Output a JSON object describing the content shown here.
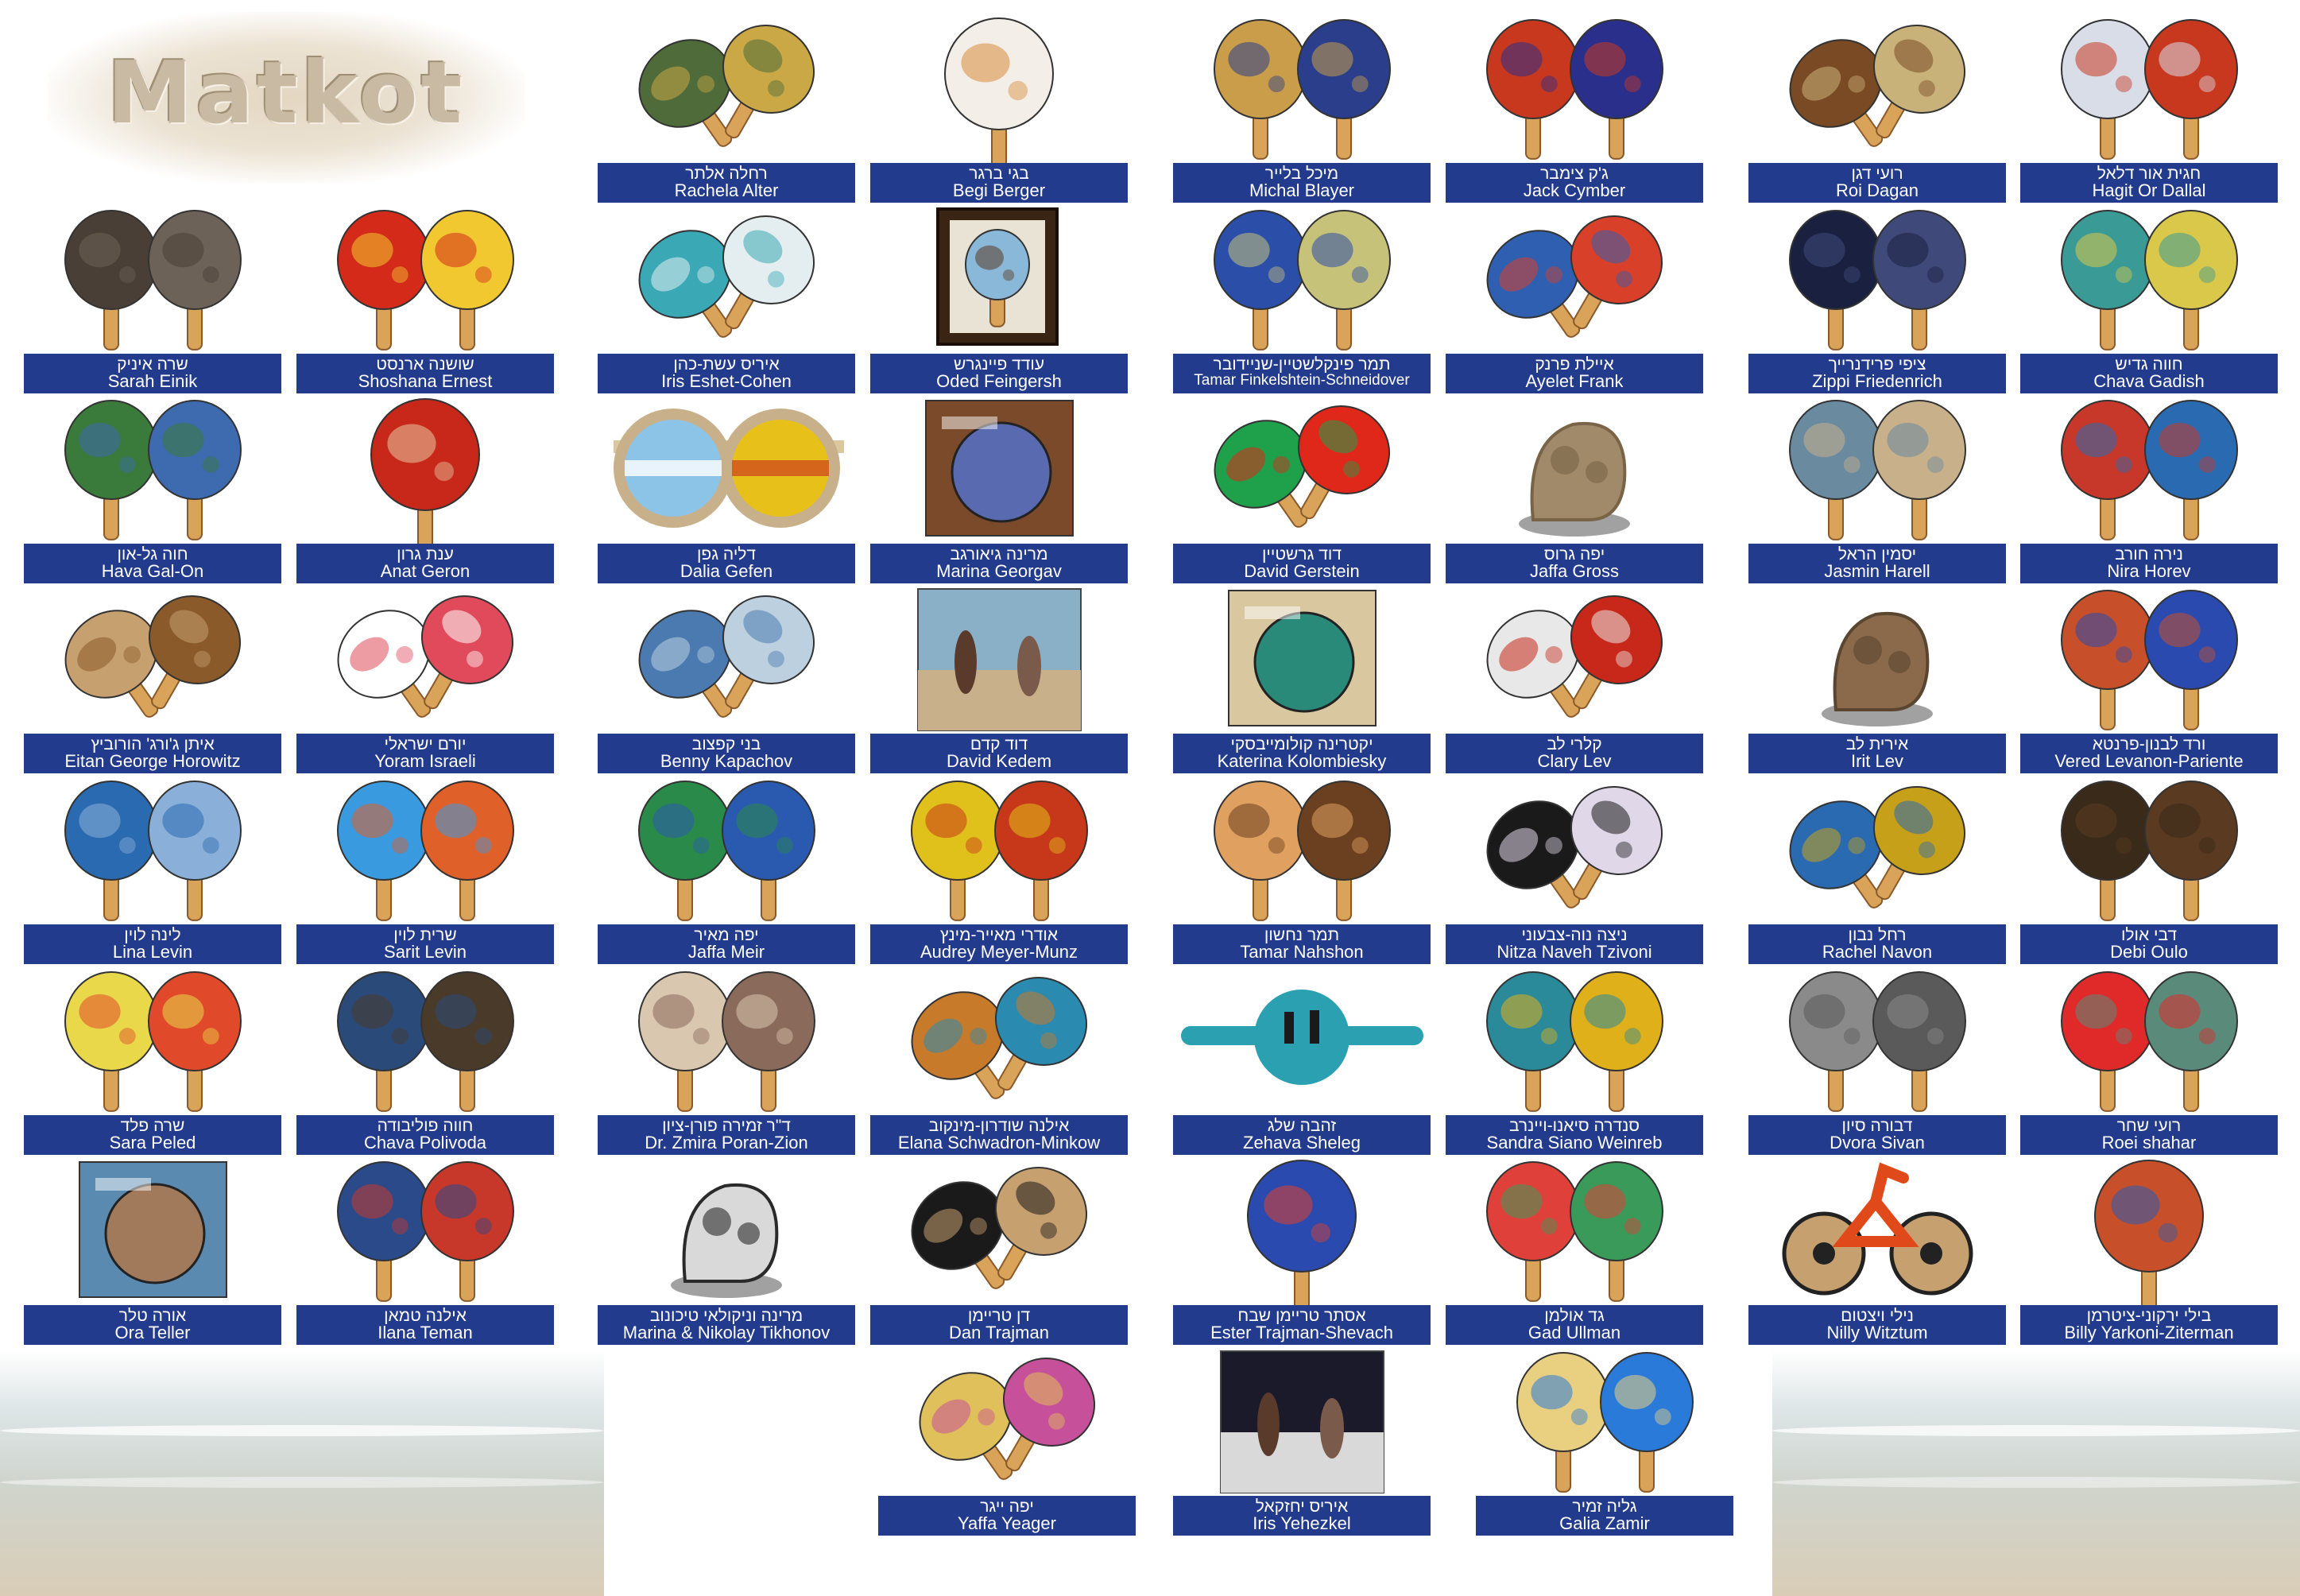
{
  "logo": {
    "text": "Matkot"
  },
  "artists": [
    {
      "he": "רחלה אלתר",
      "en": "Rachela Alter",
      "colors": [
        "#4f6b3a",
        "#c9a845"
      ],
      "kind": "pair-tilt"
    },
    {
      "he": "בגי ברגר",
      "en": "Begi Berger",
      "colors": [
        "#f3efe8",
        "#d98b3a"
      ],
      "kind": "single"
    },
    {
      "he": "מיכל בלייר",
      "en": "Michal Blayer",
      "colors": [
        "#c99d4a",
        "#2a3e8c"
      ],
      "kind": "pair"
    },
    {
      "he": "ג'ק צימבר",
      "en": "Jack Cymber",
      "colors": [
        "#c7381f",
        "#2b2f8c"
      ],
      "kind": "pair"
    },
    {
      "he": "רועי דגן",
      "en": "Roi Dagan",
      "colors": [
        "#7a4a25",
        "#c9b27a"
      ],
      "kind": "pair-tilt"
    },
    {
      "he": "חגית אור דלאל",
      "en": "Hagit Or Dallal",
      "colors": [
        "#d9dde8",
        "#c7381f"
      ],
      "kind": "pair"
    },
    {
      "he": "שרה איניק",
      "en": "Sarah Einik",
      "colors": [
        "#4a3f36",
        "#6c6258"
      ],
      "kind": "pair"
    },
    {
      "he": "שושנה ארנסט",
      "en": "Shoshana Ernest",
      "colors": [
        "#d42a1a",
        "#f2c830"
      ],
      "kind": "pair"
    },
    {
      "he": "איריס עשת-כהן",
      "en": "Iris  Eshet-Cohen",
      "colors": [
        "#3aa9b5",
        "#e4eef0"
      ],
      "kind": "pair-tilt"
    },
    {
      "he": "עודד פיינגרש",
      "en": "Oded Feingersh",
      "colors": [
        "#e9e3d6",
        "#5a3a24"
      ],
      "kind": "frame"
    },
    {
      "he": "תמר פינקלשטיין-שניידובר",
      "en": "Tamar Finkelshtein-Schneidover",
      "colors": [
        "#2b4ea8",
        "#c7c27a"
      ],
      "kind": "pair"
    },
    {
      "he": "איילת פרנק",
      "en": "Ayelet Frank",
      "colors": [
        "#2f5fb0",
        "#d9402a"
      ],
      "kind": "pair-tilt"
    },
    {
      "he": "ציפי פרידנרייך",
      "en": "Zippi Friedenrich",
      "colors": [
        "#1a2140",
        "#404a7a"
      ],
      "kind": "pair"
    },
    {
      "he": "חווה גדיש",
      "en": "Chava Gadish",
      "colors": [
        "#3a9a95",
        "#d9c84a"
      ],
      "kind": "pair"
    },
    {
      "he": "חוה גל-און",
      "en": "Hava Gal-On",
      "colors": [
        "#3a7a3a",
        "#3e6ab0"
      ],
      "kind": "pair"
    },
    {
      "he": "ענת גרון",
      "en": "Anat Geron",
      "colors": [
        "#c7281a",
        "#e8c7a2"
      ],
      "kind": "single"
    },
    {
      "he": "דליה גפן",
      "en": "Dalia Gefen",
      "colors": [
        "#8cc4e8",
        "#e8c01a"
      ],
      "kind": "glasses"
    },
    {
      "he": "מרינה גיאורגב",
      "en": "Marina Georgav",
      "colors": [
        "#5a6ab0",
        "#7a4a2a"
      ],
      "kind": "board"
    },
    {
      "he": "דוד גרשטיין",
      "en": "David Gerstein",
      "colors": [
        "#1fa04a",
        "#e0281a"
      ],
      "kind": "pair-tilt"
    },
    {
      "he": "יפה גרוס",
      "en": "Jaffa Gross",
      "colors": [
        "#a08a6a",
        "#7a6448"
      ],
      "kind": "sculpt"
    },
    {
      "he": "יסמין הראל",
      "en": "Jasmin Harell",
      "colors": [
        "#6a8aa0",
        "#c7b08a"
      ],
      "kind": "pair"
    },
    {
      "he": "נירה חורב",
      "en": "Nira Horev",
      "colors": [
        "#c7382a",
        "#2a6ab0"
      ],
      "kind": "pair"
    },
    {
      "he": "איתן ג'ורג' הורוביץ",
      "en": "Eitan George Horowitz",
      "colors": [
        "#c7a070",
        "#8a5a2a"
      ],
      "kind": "pair-tilt"
    },
    {
      "he": "יורם ישראלי",
      "en": "Yoram Israeli",
      "colors": [
        "#ffffff",
        "#e04a5a"
      ],
      "kind": "pair-tilt"
    },
    {
      "he": "בני קפצוב",
      "en": "Benny Kapachov",
      "colors": [
        "#4a7ab0",
        "#bcd0e0"
      ],
      "kind": "pair-tilt"
    },
    {
      "he": "דוד קדם",
      "en": "David Kedem",
      "colors": [
        "#8ab0c7",
        "#c7b08a"
      ],
      "kind": "photo"
    },
    {
      "he": "יקטרינה קולומייבסקי",
      "en": "Katerina Kolombiesky",
      "colors": [
        "#2a8a7a",
        "#d9c7a0"
      ],
      "kind": "board"
    },
    {
      "he": "קלרי לב",
      "en": "Clary Lev",
      "colors": [
        "#e8e8e8",
        "#c7281a"
      ],
      "kind": "pair-tilt"
    },
    {
      "he": "אירית לב",
      "en": "Irit Lev",
      "colors": [
        "#8a6a4a",
        "#5a4630"
      ],
      "kind": "sculpt"
    },
    {
      "he": "ורד לבנון-פרנטא",
      "en": "Vered Levanon-Pariente",
      "colors": [
        "#c7502a",
        "#2a4ab0"
      ],
      "kind": "pair"
    },
    {
      "he": "לינה לוין",
      "en": "Lina Levin",
      "colors": [
        "#2a6ab0",
        "#8ab0d9"
      ],
      "kind": "pair"
    },
    {
      "he": "שרית לוין",
      "en": "Sarit Levin",
      "colors": [
        "#3a9ae0",
        "#e0602a"
      ],
      "kind": "pair"
    },
    {
      "he": "יפה מאיר",
      "en": "Jaffa Meir",
      "colors": [
        "#2a8a4a",
        "#2a5ab0"
      ],
      "kind": "pair"
    },
    {
      "he": "אודרי מאייר-מינץ",
      "en": "Audrey Meyer-Munz",
      "colors": [
        "#e0c01a",
        "#c7381a"
      ],
      "kind": "pair"
    },
    {
      "he": "תמר נחשון",
      "en": "Tamar Nahshon",
      "colors": [
        "#e0a060",
        "#6a4020"
      ],
      "kind": "pair"
    },
    {
      "he": "ניצה נוה-צבעוני",
      "en": "Nitza Naveh Tzivoni",
      "colors": [
        "#1a1a1a",
        "#e0d7e8"
      ],
      "kind": "pair-tilt"
    },
    {
      "he": "רחל נבון",
      "en": "Rachel Navon",
      "colors": [
        "#2a6ab0",
        "#c7a01a"
      ],
      "kind": "pair-tilt"
    },
    {
      "he": "דבי אולו",
      "en": "Debi Oulo",
      "colors": [
        "#3a2a1a",
        "#5a3a20"
      ],
      "kind": "pair"
    },
    {
      "he": "שרה פלד",
      "en": "Sara Peled",
      "colors": [
        "#e8d84a",
        "#e04a2a"
      ],
      "kind": "pair"
    },
    {
      "he": "חווה פוליבודה",
      "en": "Chava Polivoda",
      "colors": [
        "#2a4a7a",
        "#4a3a2a"
      ],
      "kind": "pair"
    },
    {
      "he": "ד\"ר זמירה פורן-ציון",
      "en": "Dr. Zmira Poran-Zion",
      "colors": [
        "#d9c7b0",
        "#8a6a5a"
      ],
      "kind": "pair"
    },
    {
      "he": "אילנה שודרון-מינקוב",
      "en": "Elana Schwadron-Minkow",
      "colors": [
        "#c77a2a",
        "#2a8ab0"
      ],
      "kind": "pair-tilt"
    },
    {
      "he": "זהבה שלג",
      "en": "Zehava Sheleg",
      "colors": [
        "#2aa0b0",
        "#1a1a1a"
      ],
      "kind": "wide"
    },
    {
      "he": "סנדרה סיאנו-ויינרב",
      "en": "Sandra Siano Weinreb",
      "colors": [
        "#2a8a9a",
        "#e0b01a"
      ],
      "kind": "pair"
    },
    {
      "he": "דבורה סיון",
      "en": "Dvora Sivan",
      "colors": [
        "#8a8a8a",
        "#5a5a5a"
      ],
      "kind": "pair"
    },
    {
      "he": "רועי שחר",
      "en": "Roei shahar",
      "colors": [
        "#e02a2a",
        "#5a8a7a"
      ],
      "kind": "pair"
    },
    {
      "he": "אורה טלר",
      "en": "Ora Teller",
      "colors": [
        "#a07a5a",
        "#5a8ab0"
      ],
      "kind": "board"
    },
    {
      "he": "אילנה טמאן",
      "en": "Ilana Teman",
      "colors": [
        "#2a4a8a",
        "#c7382a"
      ],
      "kind": "pair"
    },
    {
      "he": "מרינה וניקולאי טיכונוב",
      "en": "Marina & Nikolay Tikhonov",
      "colors": [
        "#d9d9d9",
        "#2a2a2a"
      ],
      "kind": "sculpt"
    },
    {
      "he": "דן טריימן",
      "en": "Dan Trajman",
      "colors": [
        "#1a1a1a",
        "#c7a070"
      ],
      "kind": "pair-tilt"
    },
    {
      "he": "אסתר טריימן שבח",
      "en": "Ester  Trajman-Shevach",
      "colors": [
        "#2a4ab0",
        "#e0402a"
      ],
      "kind": "single"
    },
    {
      "he": "גד אולמן",
      "en": "Gad Ullman",
      "colors": [
        "#e0403a",
        "#3a9a5a"
      ],
      "kind": "pair"
    },
    {
      "he": "נילי ויצטום",
      "en": "Nilly Witztum",
      "colors": [
        "#e04a1a",
        "#c7a070"
      ],
      "kind": "bike"
    },
    {
      "he": "בילי ירקוני-ציטרמן",
      "en": "Billy Yarkoni-Ziterman",
      "colors": [
        "#c7502a",
        "#2a5ab0"
      ],
      "kind": "single"
    },
    {
      "he": "יפה ייגר",
      "en": "Yaffa Yeager",
      "colors": [
        "#e0c05a",
        "#c7509a"
      ],
      "kind": "pair-tilt"
    },
    {
      "he": "איריס יחזקאל",
      "en": "Iris Yehezkel",
      "colors": [
        "#1a1a2a",
        "#d9d9d9"
      ],
      "kind": "photo"
    },
    {
      "he": "גליה זמיר",
      "en": "Galia Zamir",
      "colors": [
        "#e8d080",
        "#2a7ad9"
      ],
      "kind": "pair"
    }
  ]
}
